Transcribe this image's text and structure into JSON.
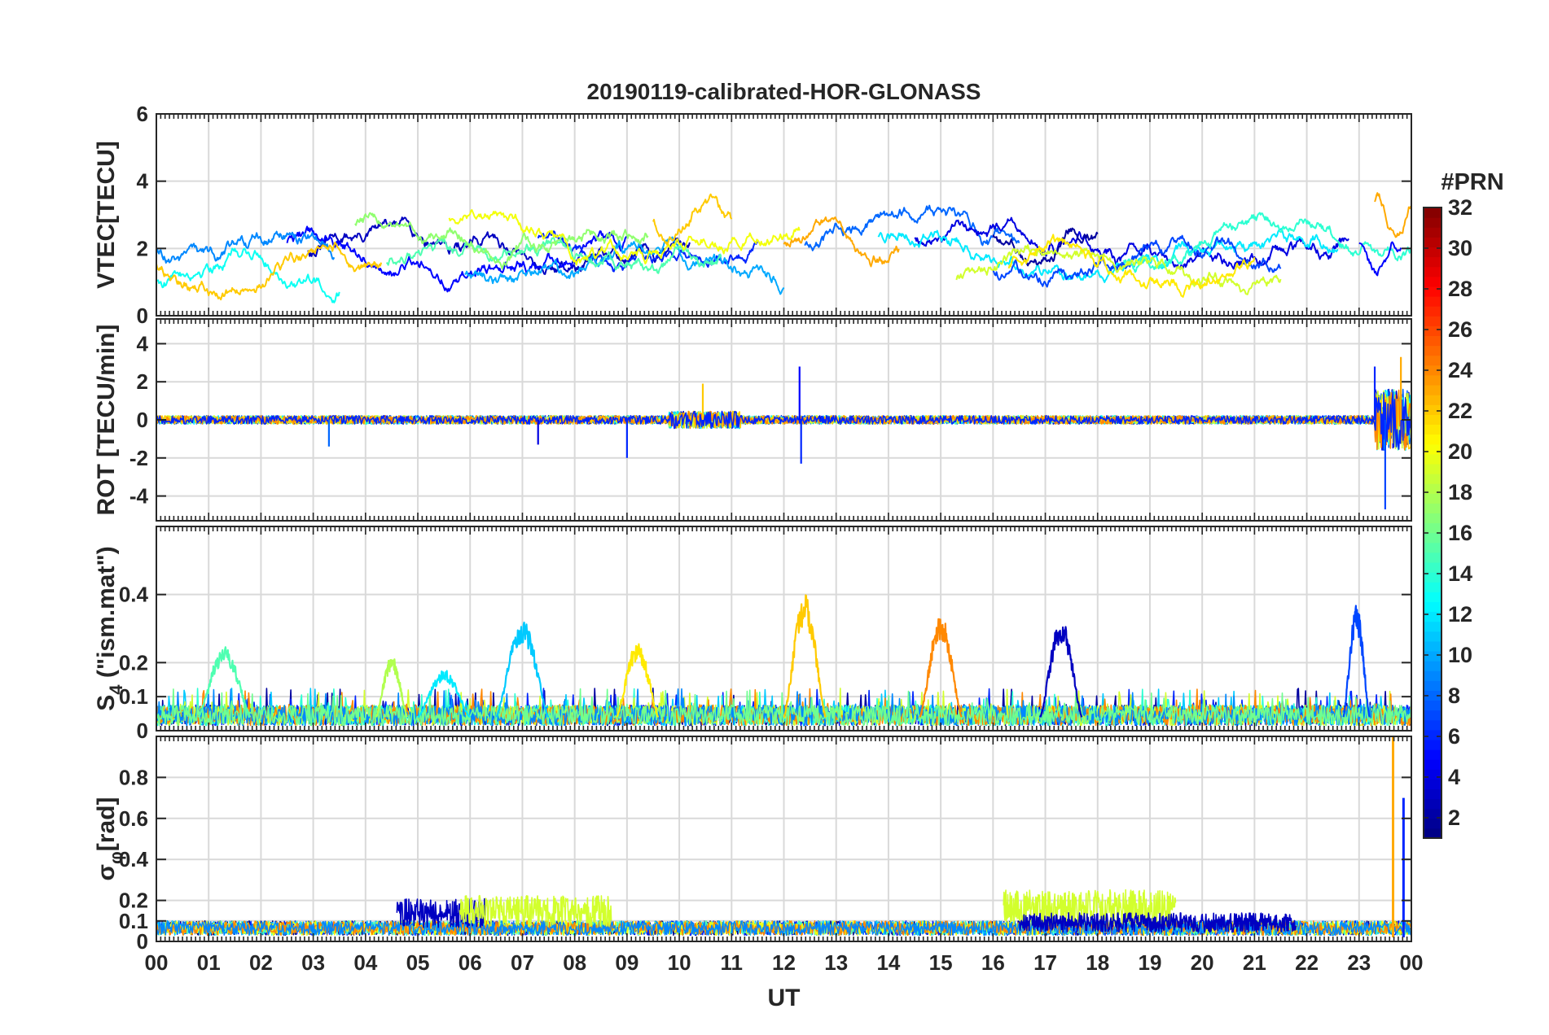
{
  "chart_data": {
    "type": "line",
    "title": "20190119-calibrated-HOR-GLONASS",
    "xlabel": "UT",
    "x_range_hours": [
      0,
      24
    ],
    "x_tick_labels": [
      "00",
      "01",
      "02",
      "03",
      "04",
      "05",
      "06",
      "07",
      "08",
      "09",
      "10",
      "11",
      "12",
      "13",
      "14",
      "15",
      "16",
      "17",
      "18",
      "19",
      "20",
      "21",
      "22",
      "23",
      "00"
    ],
    "grid": true,
    "colorbar": {
      "title": "#PRN",
      "range": [
        1,
        32
      ],
      "tick_values": [
        2,
        4,
        6,
        8,
        10,
        12,
        14,
        16,
        18,
        20,
        22,
        24,
        26,
        28,
        30,
        32
      ],
      "tick_labels": [
        "2",
        "4",
        "6",
        "8",
        "10",
        "12",
        "14",
        "16",
        "18",
        "20",
        "22",
        "24",
        "26",
        "28",
        "30",
        "32"
      ],
      "colormap": "jet",
      "placement": "right"
    },
    "panels": [
      {
        "id": "vtec",
        "ylabel": "VTEC[TECU]",
        "ylim": [
          0,
          6
        ],
        "y_ticks": [
          0,
          2,
          4,
          6
        ],
        "y_tick_labels": [
          "0",
          "2",
          "4",
          "6"
        ],
        "series": [
          {
            "prn": 3,
            "start": 2.9,
            "end": 10.2,
            "level": 2.0
          },
          {
            "prn": 5,
            "start": 2.5,
            "end": 9.0,
            "level": 1.8
          },
          {
            "prn": 6,
            "start": 7.3,
            "end": 11.5,
            "level": 1.9
          },
          {
            "prn": 9,
            "start": 0.0,
            "end": 3.4,
            "level": 1.9
          },
          {
            "prn": 10,
            "start": 5.9,
            "end": 12.0,
            "level": 1.6
          },
          {
            "prn": 13,
            "start": 0.0,
            "end": 3.5,
            "level": 1.5
          },
          {
            "prn": 15,
            "start": 4.4,
            "end": 10.8,
            "level": 1.7
          },
          {
            "prn": 17,
            "start": 3.8,
            "end": 9.4,
            "level": 2.4
          },
          {
            "prn": 20,
            "start": 5.6,
            "end": 12.3,
            "level": 2.4
          },
          {
            "prn": 22,
            "start": 0.0,
            "end": 4.3,
            "level": 1.3
          },
          {
            "prn": 22,
            "start": 9.5,
            "end": 11.0,
            "level": 3.0
          },
          {
            "prn": 8,
            "start": 12.4,
            "end": 16.5,
            "level": 2.5
          },
          {
            "prn": 23,
            "start": 12.0,
            "end": 14.2,
            "level": 2.3
          },
          {
            "prn": 4,
            "start": 14.5,
            "end": 22.8,
            "level": 2.0
          },
          {
            "prn": 12,
            "start": 13.8,
            "end": 22.6,
            "level": 1.8
          },
          {
            "prn": 2,
            "start": 16.0,
            "end": 18.0,
            "level": 2.2
          },
          {
            "prn": 7,
            "start": 16.0,
            "end": 21.5,
            "level": 1.6
          },
          {
            "prn": 14,
            "start": 18.5,
            "end": 24.0,
            "level": 2.2
          },
          {
            "prn": 19,
            "start": 15.3,
            "end": 21.5,
            "level": 1.5
          },
          {
            "prn": 21,
            "start": 16.3,
            "end": 21.0,
            "level": 1.4
          },
          {
            "prn": 23,
            "start": 23.3,
            "end": 24.0,
            "level": 3.0
          },
          {
            "prn": 5,
            "start": 23.0,
            "end": 23.8,
            "level": 1.8
          }
        ]
      },
      {
        "id": "rot",
        "ylabel": "ROT [TECU/min]",
        "ylim": [
          -5.3,
          5.3
        ],
        "y_ticks": [
          -4,
          -2,
          0,
          2,
          4
        ],
        "y_tick_labels": [
          "-4",
          "-2",
          "0",
          "2",
          "4"
        ],
        "baseline": 0,
        "notable_spikes": [
          {
            "hour": 3.3,
            "value": -1.4,
            "prn": 8
          },
          {
            "hour": 7.3,
            "value": -1.3,
            "prn": 4
          },
          {
            "hour": 9.0,
            "value": -2.0,
            "prn": 6
          },
          {
            "hour": 10.45,
            "value": 1.9,
            "prn": 22
          },
          {
            "hour": 12.3,
            "value": 2.8,
            "prn": 5
          },
          {
            "hour": 12.33,
            "value": -2.3,
            "prn": 6
          },
          {
            "hour": 23.3,
            "value": 2.8,
            "prn": 6
          },
          {
            "hour": 23.5,
            "value": -4.7,
            "prn": 7
          },
          {
            "hour": 23.8,
            "value": 3.3,
            "prn": 23
          }
        ]
      },
      {
        "id": "s4",
        "ylabel": "S4 (\"ism.mat\")",
        "ylabel_main": "S",
        "ylabel_sub": "4",
        "ylabel_rest": " (\"ism.mat\")",
        "ylim": [
          0,
          0.6
        ],
        "y_ticks": [
          0,
          0.1,
          0.2,
          0.4
        ],
        "y_tick_labels": [
          "0",
          "0.1",
          "0.2",
          "0.4"
        ],
        "events": [
          {
            "prn": 15,
            "start": 0.8,
            "end": 1.8,
            "peak": 0.25
          },
          {
            "prn": 18,
            "start": 4.2,
            "end": 4.8,
            "peak": 0.22
          },
          {
            "prn": 12,
            "start": 5.0,
            "end": 6.0,
            "peak": 0.18
          },
          {
            "prn": 11,
            "start": 6.5,
            "end": 7.5,
            "peak": 0.33
          },
          {
            "prn": 21,
            "start": 8.8,
            "end": 9.6,
            "peak": 0.26
          },
          {
            "prn": 22,
            "start": 12.0,
            "end": 12.8,
            "peak": 0.4
          },
          {
            "prn": 24,
            "start": 14.6,
            "end": 15.4,
            "peak": 0.34
          },
          {
            "prn": 3,
            "start": 16.9,
            "end": 17.7,
            "peak": 0.33
          },
          {
            "prn": 7,
            "start": 22.7,
            "end": 23.2,
            "peak": 0.37
          }
        ]
      },
      {
        "id": "sigma_phi",
        "ylabel": "σφ[rad]",
        "ylabel_main": "σ",
        "ylabel_sub": "φ",
        "ylabel_rest": "[rad]",
        "ylim": [
          0,
          1.0
        ],
        "y_ticks": [
          0,
          0.1,
          0.2,
          0.4,
          0.6,
          0.8
        ],
        "y_tick_labels": [
          "0",
          "0.1",
          "0.2",
          "0.4",
          "0.6",
          "0.8"
        ],
        "bands": [
          {
            "prn": 3,
            "start": 4.6,
            "end": 6.3,
            "level": 0.15
          },
          {
            "prn": 19,
            "start": 5.8,
            "end": 8.7,
            "level": 0.16
          },
          {
            "prn": 19,
            "start": 16.2,
            "end": 19.5,
            "level": 0.18
          },
          {
            "prn": 3,
            "start": 16.5,
            "end": 21.8,
            "level": 0.1
          }
        ],
        "notable_spikes": [
          {
            "hour": 23.65,
            "value": 1.0,
            "prn": 23
          },
          {
            "hour": 23.85,
            "value": 0.7,
            "prn": 6
          }
        ]
      }
    ]
  }
}
